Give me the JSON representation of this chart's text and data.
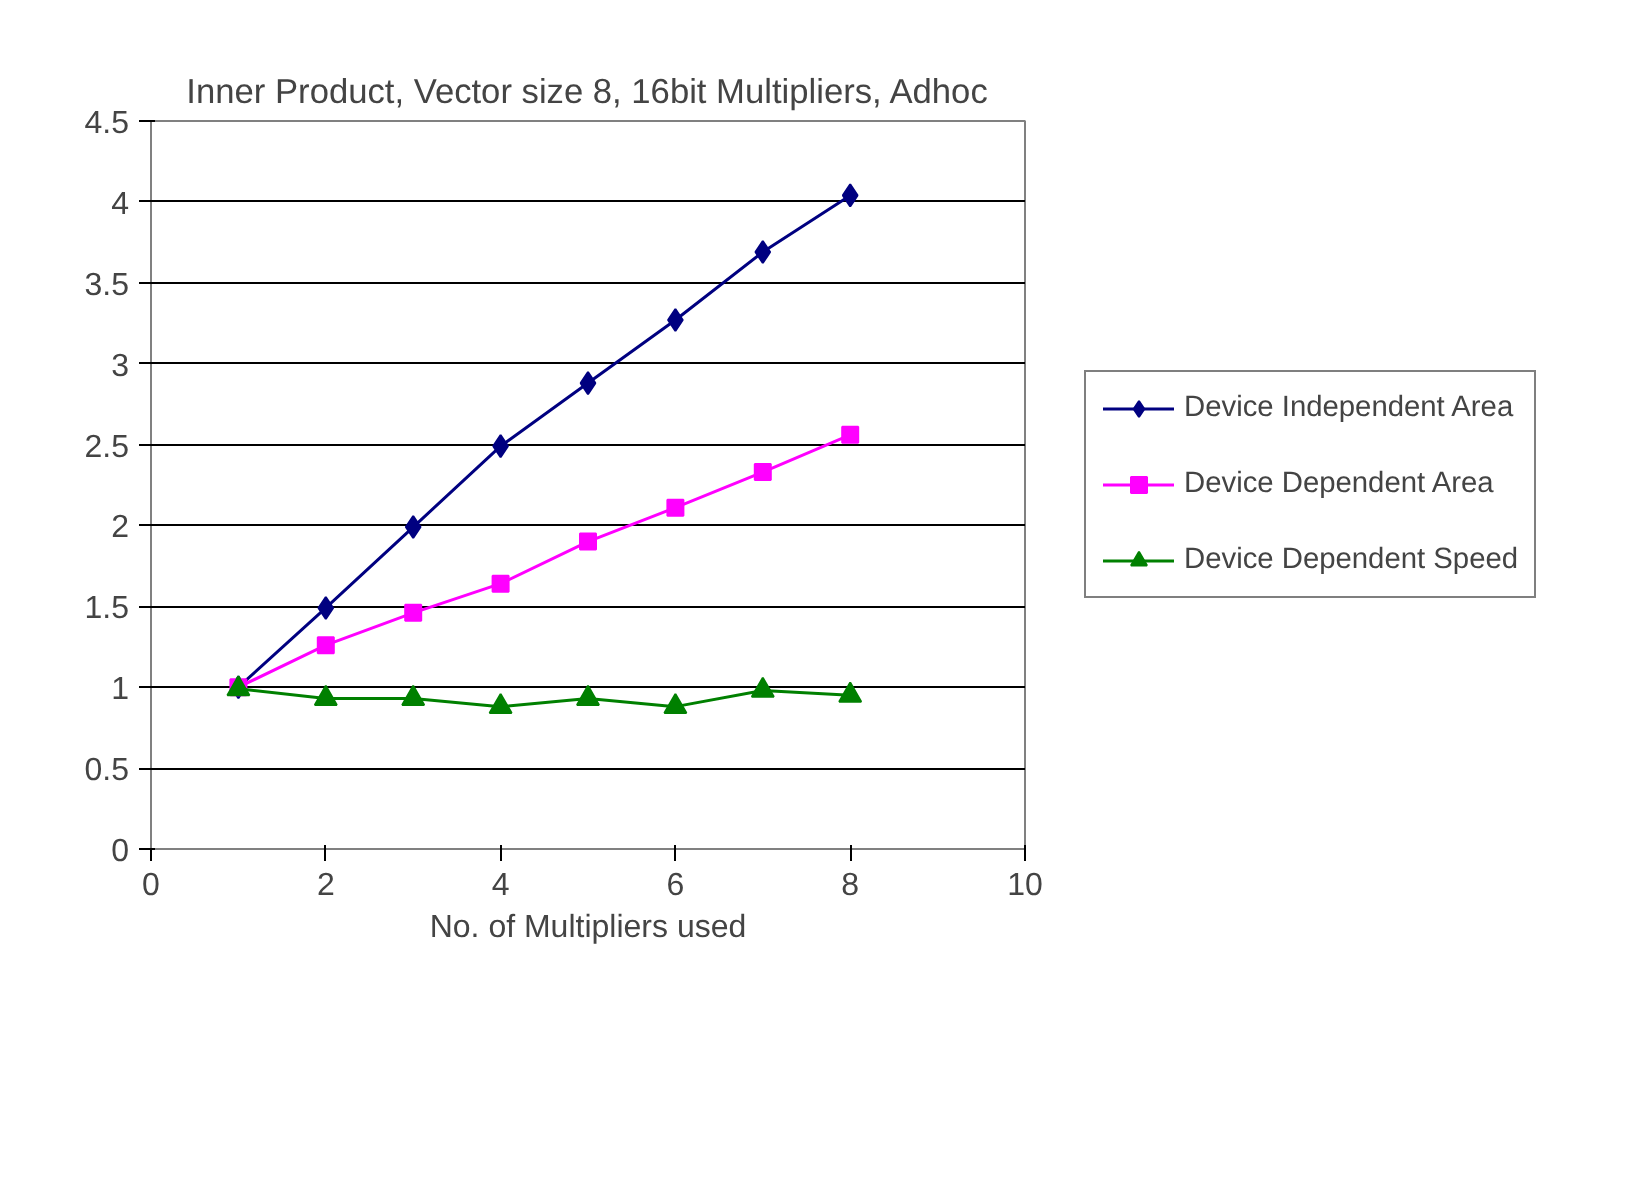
{
  "chart_data": {
    "type": "line",
    "title": "Inner Product, Vector size 8, 16bit Multipliers, Adhoc",
    "xlabel": "No. of Multipliers used",
    "x": [
      1,
      2,
      3,
      4,
      5,
      6,
      7,
      8
    ],
    "series": [
      {
        "name": "Device Independent Area",
        "color": "#000080",
        "marker": "diamond",
        "values": [
          1.0,
          1.49,
          1.99,
          2.49,
          2.88,
          3.27,
          3.69,
          4.04
        ]
      },
      {
        "name": "Device Dependent Area",
        "color": "#ff00ff",
        "marker": "square",
        "values": [
          1.0,
          1.26,
          1.46,
          1.64,
          1.9,
          2.11,
          2.33,
          2.56
        ]
      },
      {
        "name": "Device Dependent Speed",
        "color": "#008000",
        "marker": "triangle",
        "values": [
          0.99,
          0.93,
          0.93,
          0.88,
          0.93,
          0.88,
          0.98,
          0.95
        ]
      }
    ],
    "xlim": [
      0,
      10
    ],
    "xticks": [
      0,
      2,
      4,
      6,
      8,
      10
    ],
    "ylim": [
      0,
      4.5
    ],
    "yticks": [
      0,
      0.5,
      1,
      1.5,
      2,
      2.5,
      3,
      3.5,
      4,
      4.5
    ],
    "grid": "y",
    "legend": "right",
    "line_style": "solid"
  }
}
